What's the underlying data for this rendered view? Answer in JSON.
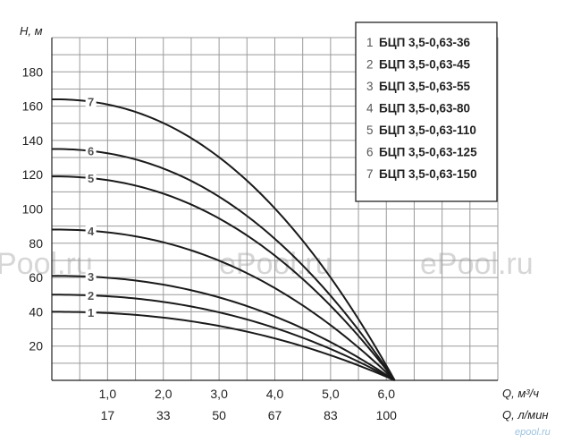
{
  "chart_data": {
    "type": "line",
    "ylabel": "H, м",
    "xlabel": "Q, м³/ч",
    "xlabel2": "Q, л/мин",
    "ylim": [
      0,
      200
    ],
    "xlim": [
      0,
      8
    ],
    "yticks": [
      "20",
      "40",
      "60",
      "80",
      "100",
      "120",
      "140",
      "160",
      "180"
    ],
    "xticks": [
      {
        "m3h": "1,0",
        "lmin": "17"
      },
      {
        "m3h": "2,0",
        "lmin": "33"
      },
      {
        "m3h": "3,0",
        "lmin": "50"
      },
      {
        "m3h": "4,0",
        "lmin": "67"
      },
      {
        "m3h": "5,0",
        "lmin": "83"
      },
      {
        "m3h": "6,0",
        "lmin": "100"
      }
    ],
    "grid": true,
    "legend_position": "top-right",
    "series": [
      {
        "name": "БЦП 3,5-0,63-36",
        "label": "1",
        "shutoff_head": 40,
        "max_flow": 6.15
      },
      {
        "name": "БЦП 3,5-0,63-45",
        "label": "2",
        "shutoff_head": 50,
        "max_flow": 6.15
      },
      {
        "name": "БЦП 3,5-0,63-55",
        "label": "3",
        "shutoff_head": 61,
        "max_flow": 6.15
      },
      {
        "name": "БЦП 3,5-0,63-80",
        "label": "4",
        "shutoff_head": 88,
        "max_flow": 6.15
      },
      {
        "name": "БЦП 3,5-0,63-110",
        "label": "5",
        "shutoff_head": 119,
        "max_flow": 6.15
      },
      {
        "name": "БЦП 3,5-0,63-125",
        "label": "6",
        "shutoff_head": 135,
        "max_flow": 6.15
      },
      {
        "name": "БЦП 3,5-0,63-150",
        "label": "7",
        "shutoff_head": 164,
        "max_flow": 6.15
      }
    ]
  },
  "watermarks": [
    "Pool.ru",
    "ePool.ru",
    "ePool.ru"
  ],
  "logo_text": "epool.ru"
}
